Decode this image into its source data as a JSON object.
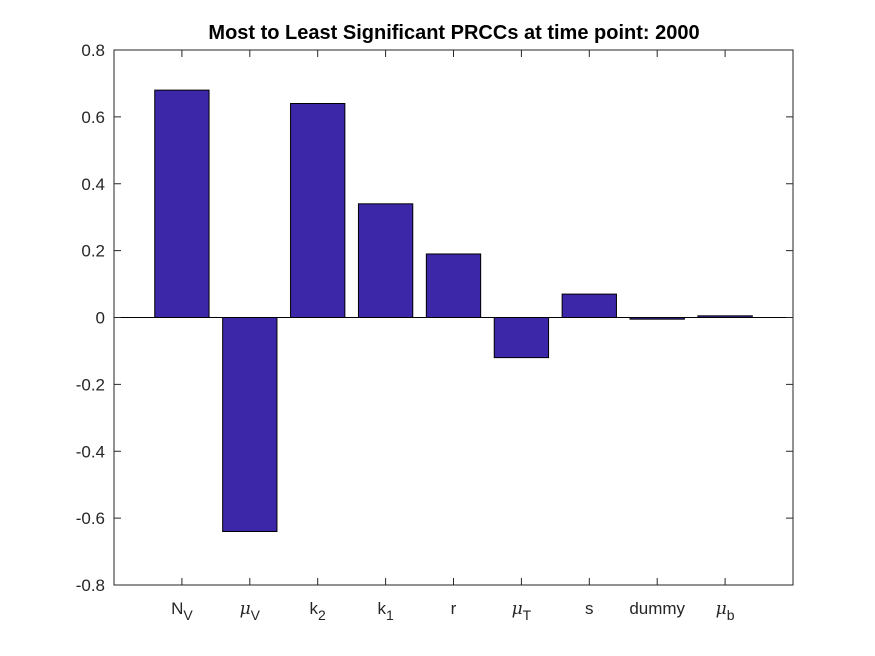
{
  "chart_data": {
    "type": "bar",
    "title": "Most to Least Significant PRCCs at time point: 2000",
    "xlabel": "",
    "ylabel": "",
    "categories": [
      {
        "base": "N",
        "sub": "V",
        "greek": false
      },
      {
        "base": "μ",
        "sub": "V",
        "greek": true
      },
      {
        "base": "k",
        "sub": "2",
        "greek": false
      },
      {
        "base": "k",
        "sub": "1",
        "greek": false
      },
      {
        "base": "r",
        "sub": "",
        "greek": false
      },
      {
        "base": "μ",
        "sub": "T",
        "greek": true
      },
      {
        "base": "s",
        "sub": "",
        "greek": false
      },
      {
        "base": "dummy",
        "sub": "",
        "greek": false
      },
      {
        "base": "μ",
        "sub": "b",
        "greek": true
      }
    ],
    "values": [
      0.68,
      -0.64,
      0.64,
      0.34,
      0.19,
      -0.12,
      0.07,
      -0.005,
      0.005
    ],
    "ylim": [
      -0.8,
      0.8
    ],
    "yticks": [
      "-0.8",
      "-0.6",
      "-0.4",
      "-0.2",
      "0",
      "0.2",
      "0.4",
      "0.6",
      "0.8"
    ],
    "bar_color": "#3b27a8",
    "grid": false
  }
}
